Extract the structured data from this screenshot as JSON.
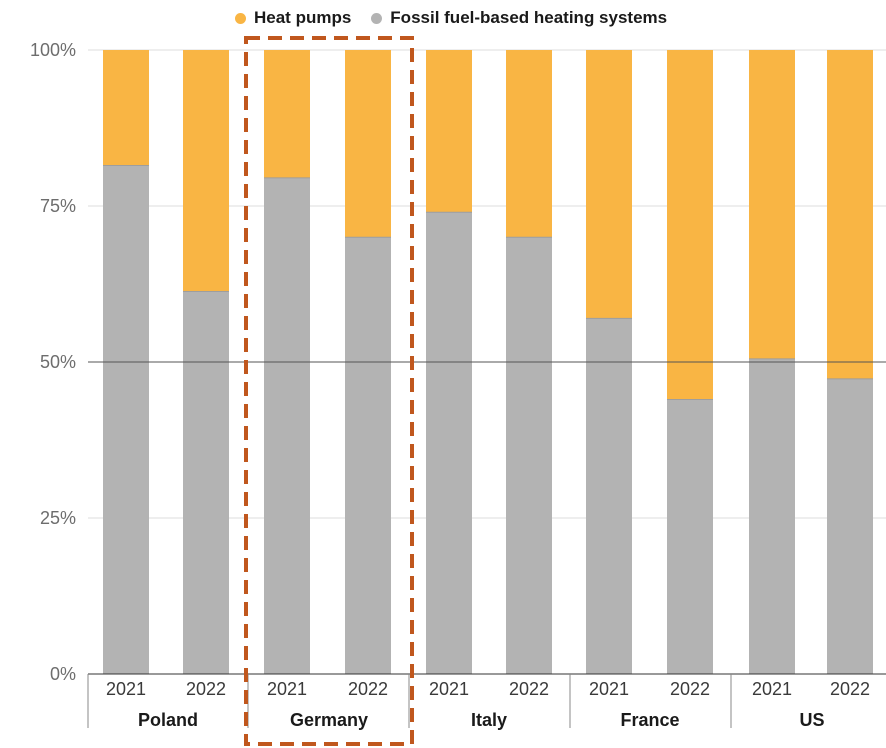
{
  "chart_data": {
    "type": "bar",
    "stacked": true,
    "normalized_percent": true,
    "legend": {
      "position": "top",
      "entries": [
        {
          "name": "Heat pumps",
          "color": "#f9b544"
        },
        {
          "name": "Fossil fuel-based heating systems",
          "color": "#b3b3b3"
        }
      ]
    },
    "y_ticks": [
      "0%",
      "25%",
      "50%",
      "75%",
      "100%"
    ],
    "ylim": [
      0,
      100
    ],
    "grid": true,
    "highlight": {
      "group": "Germany",
      "style": "dashed",
      "color": "#c0571d"
    },
    "groups": [
      {
        "country": "Poland",
        "years": [
          "2021",
          "2022"
        ]
      },
      {
        "country": "Germany",
        "years": [
          "2021",
          "2022"
        ]
      },
      {
        "country": "Italy",
        "years": [
          "2021",
          "2022"
        ]
      },
      {
        "country": "France",
        "years": [
          "2021",
          "2022"
        ]
      },
      {
        "country": "US",
        "years": [
          "2021",
          "2022"
        ]
      }
    ],
    "categories": [
      "Poland 2021",
      "Poland 2022",
      "Germany 2021",
      "Germany 2022",
      "Italy 2021",
      "Italy 2022",
      "France 2021",
      "France 2022",
      "US 2021",
      "US 2022"
    ],
    "series": [
      {
        "name": "Fossil fuel-based heating systems",
        "values": [
          81.5,
          61.3,
          79.5,
          70.0,
          74.0,
          70.0,
          57.0,
          44.0,
          50.5,
          47.3
        ]
      },
      {
        "name": "Heat pumps",
        "values": [
          18.5,
          38.7,
          20.5,
          30.0,
          26.0,
          30.0,
          43.0,
          56.0,
          49.5,
          52.7
        ]
      }
    ]
  }
}
